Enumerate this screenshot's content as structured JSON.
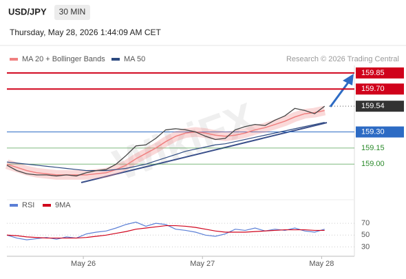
{
  "header": {
    "symbol": "USD/JPY",
    "interval": "30 MIN",
    "timestamp": "Thursday, May 28, 2026 1:44:09 AM CET"
  },
  "copyright": "Research © 2026 Trading Central",
  "watermark": "WikiFX",
  "chart_data": [
    {
      "type": "line",
      "color": "#444444",
      "values": [
        158.99,
        158.94,
        158.91,
        158.9,
        158.9,
        158.89,
        158.9,
        158.89,
        158.92,
        158.94,
        158.95,
        159.0,
        159.08,
        159.17,
        159.18,
        159.24,
        159.32,
        159.33,
        159.32,
        159.3,
        159.26,
        159.23,
        159.24,
        159.32,
        159.35,
        159.37,
        159.36,
        159.41,
        159.45,
        159.52,
        159.5,
        159.47,
        159.54
      ],
      "series": [
        {
          "name": "MA 20 + Bollinger Bands",
          "color": "#f08080",
          "values": [
            159.0,
            158.97,
            158.94,
            158.92,
            158.91,
            158.9,
            158.9,
            158.9,
            158.9,
            158.91,
            158.92,
            158.95,
            158.99,
            159.05,
            159.1,
            159.15,
            159.21,
            159.26,
            159.29,
            159.3,
            159.29,
            159.27,
            159.26,
            159.27,
            159.29,
            159.32,
            159.34,
            159.37,
            159.4,
            159.44,
            159.47,
            159.48,
            159.5
          ]
        },
        {
          "name": "MA 50",
          "color": "#2d4a80",
          "values": [
            159.02,
            159.01,
            159.0,
            158.99,
            158.98,
            158.97,
            158.96,
            158.95,
            158.94,
            158.94,
            158.94,
            158.95,
            158.96,
            158.98,
            159.0,
            159.03,
            159.06,
            159.09,
            159.12,
            159.14,
            159.16,
            159.18,
            159.19,
            159.21,
            159.23,
            159.25,
            159.27,
            159.29,
            159.31,
            159.33,
            159.35,
            159.37,
            159.39
          ]
        }
      ],
      "levels": [
        {
          "value": 159.85,
          "label": "159.85",
          "color": "#d0021b",
          "style": "box"
        },
        {
          "value": 159.7,
          "label": "159.70",
          "color": "#d0021b",
          "style": "box"
        },
        {
          "value": 159.54,
          "label": "159.54",
          "color": "#333333",
          "style": "box"
        },
        {
          "value": 159.3,
          "label": "159.30",
          "color": "#2d6bc4",
          "style": "box"
        },
        {
          "value": 159.15,
          "label": "159.15",
          "color": "#2a8a2a",
          "style": "text"
        },
        {
          "value": 159.0,
          "label": "159.00",
          "color": "#2a8a2a",
          "style": "text"
        }
      ],
      "xlim": [
        0,
        35
      ],
      "ylim": [
        158.7,
        159.92
      ],
      "xticks": [
        {
          "value": 7.7,
          "label": "May 26"
        },
        {
          "value": 19.7,
          "label": "May 27"
        },
        {
          "value": 31.7,
          "label": "May 28"
        }
      ]
    },
    {
      "type": "line",
      "series": [
        {
          "name": "RSI",
          "color": "#5b7fd6",
          "values": [
            50,
            45,
            42,
            44,
            46,
            43,
            47,
            45,
            52,
            55,
            57,
            62,
            68,
            72,
            65,
            70,
            68,
            60,
            58,
            55,
            50,
            48,
            52,
            60,
            58,
            62,
            57,
            60,
            58,
            62,
            57,
            55,
            60
          ]
        },
        {
          "name": "9MA",
          "color": "#d0021b",
          "values": [
            50,
            49,
            47,
            46,
            45,
            45,
            45,
            45,
            46,
            48,
            50,
            53,
            56,
            60,
            62,
            64,
            66,
            66,
            65,
            63,
            60,
            57,
            55,
            55,
            55,
            56,
            57,
            58,
            59,
            59,
            59,
            58,
            58
          ]
        }
      ],
      "xlim": [
        0,
        35
      ],
      "ylim": [
        20,
        90
      ],
      "yticks": [
        30,
        50,
        70
      ]
    }
  ]
}
